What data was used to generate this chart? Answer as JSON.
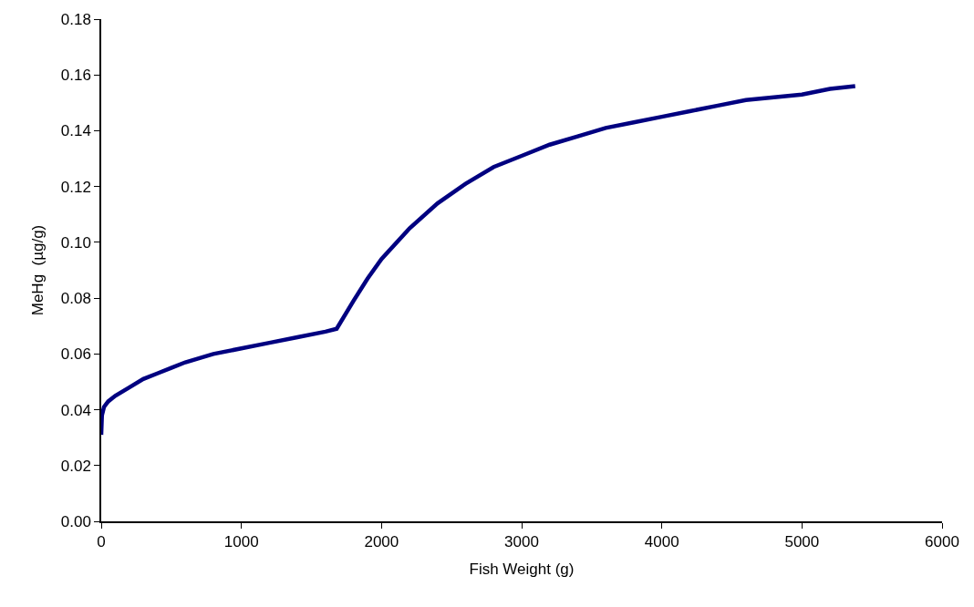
{
  "chart_data": {
    "type": "line",
    "xlabel": "Fish Weight (g)",
    "ylabel": "MeHg  (µg/g)",
    "x": [
      0,
      5,
      20,
      50,
      100,
      200,
      300,
      400,
      500,
      600,
      800,
      1000,
      1200,
      1400,
      1600,
      1680,
      1800,
      1900,
      2000,
      2200,
      2400,
      2600,
      2800,
      3000,
      3200,
      3400,
      3600,
      3800,
      4000,
      4200,
      4400,
      4600,
      4800,
      5000,
      5200,
      5380
    ],
    "series": [
      {
        "color": "#000080",
        "values": [
          0.031,
          0.038,
          0.041,
          0.043,
          0.045,
          0.048,
          0.051,
          0.053,
          0.055,
          0.057,
          0.06,
          0.062,
          0.064,
          0.066,
          0.068,
          0.069,
          0.079,
          0.087,
          0.094,
          0.105,
          0.114,
          0.121,
          0.127,
          0.131,
          0.135,
          0.138,
          0.141,
          0.143,
          0.145,
          0.147,
          0.149,
          0.151,
          0.152,
          0.153,
          0.155,
          0.156
        ]
      }
    ],
    "xlim": [
      0,
      6000
    ],
    "xticks": [
      0,
      1000,
      2000,
      3000,
      4000,
      5000,
      6000
    ],
    "ylim": [
      0,
      0.18
    ],
    "yticks": [
      {
        "value": 0,
        "label": "0.00"
      },
      {
        "value": 0.02,
        "label": "0.02"
      },
      {
        "value": 0.04,
        "label": "0.04"
      },
      {
        "value": 0.06,
        "label": "0.06"
      },
      {
        "value": 0.08,
        "label": "0.08"
      },
      {
        "value": 0.1,
        "label": "0.10"
      },
      {
        "value": 0.12,
        "label": "0.12"
      },
      {
        "value": 0.14,
        "label": "0.14"
      },
      {
        "value": 0.16,
        "label": "0.16"
      },
      {
        "value": 0.18,
        "label": "0.18"
      }
    ],
    "marker": "none",
    "line_style": "solid"
  }
}
